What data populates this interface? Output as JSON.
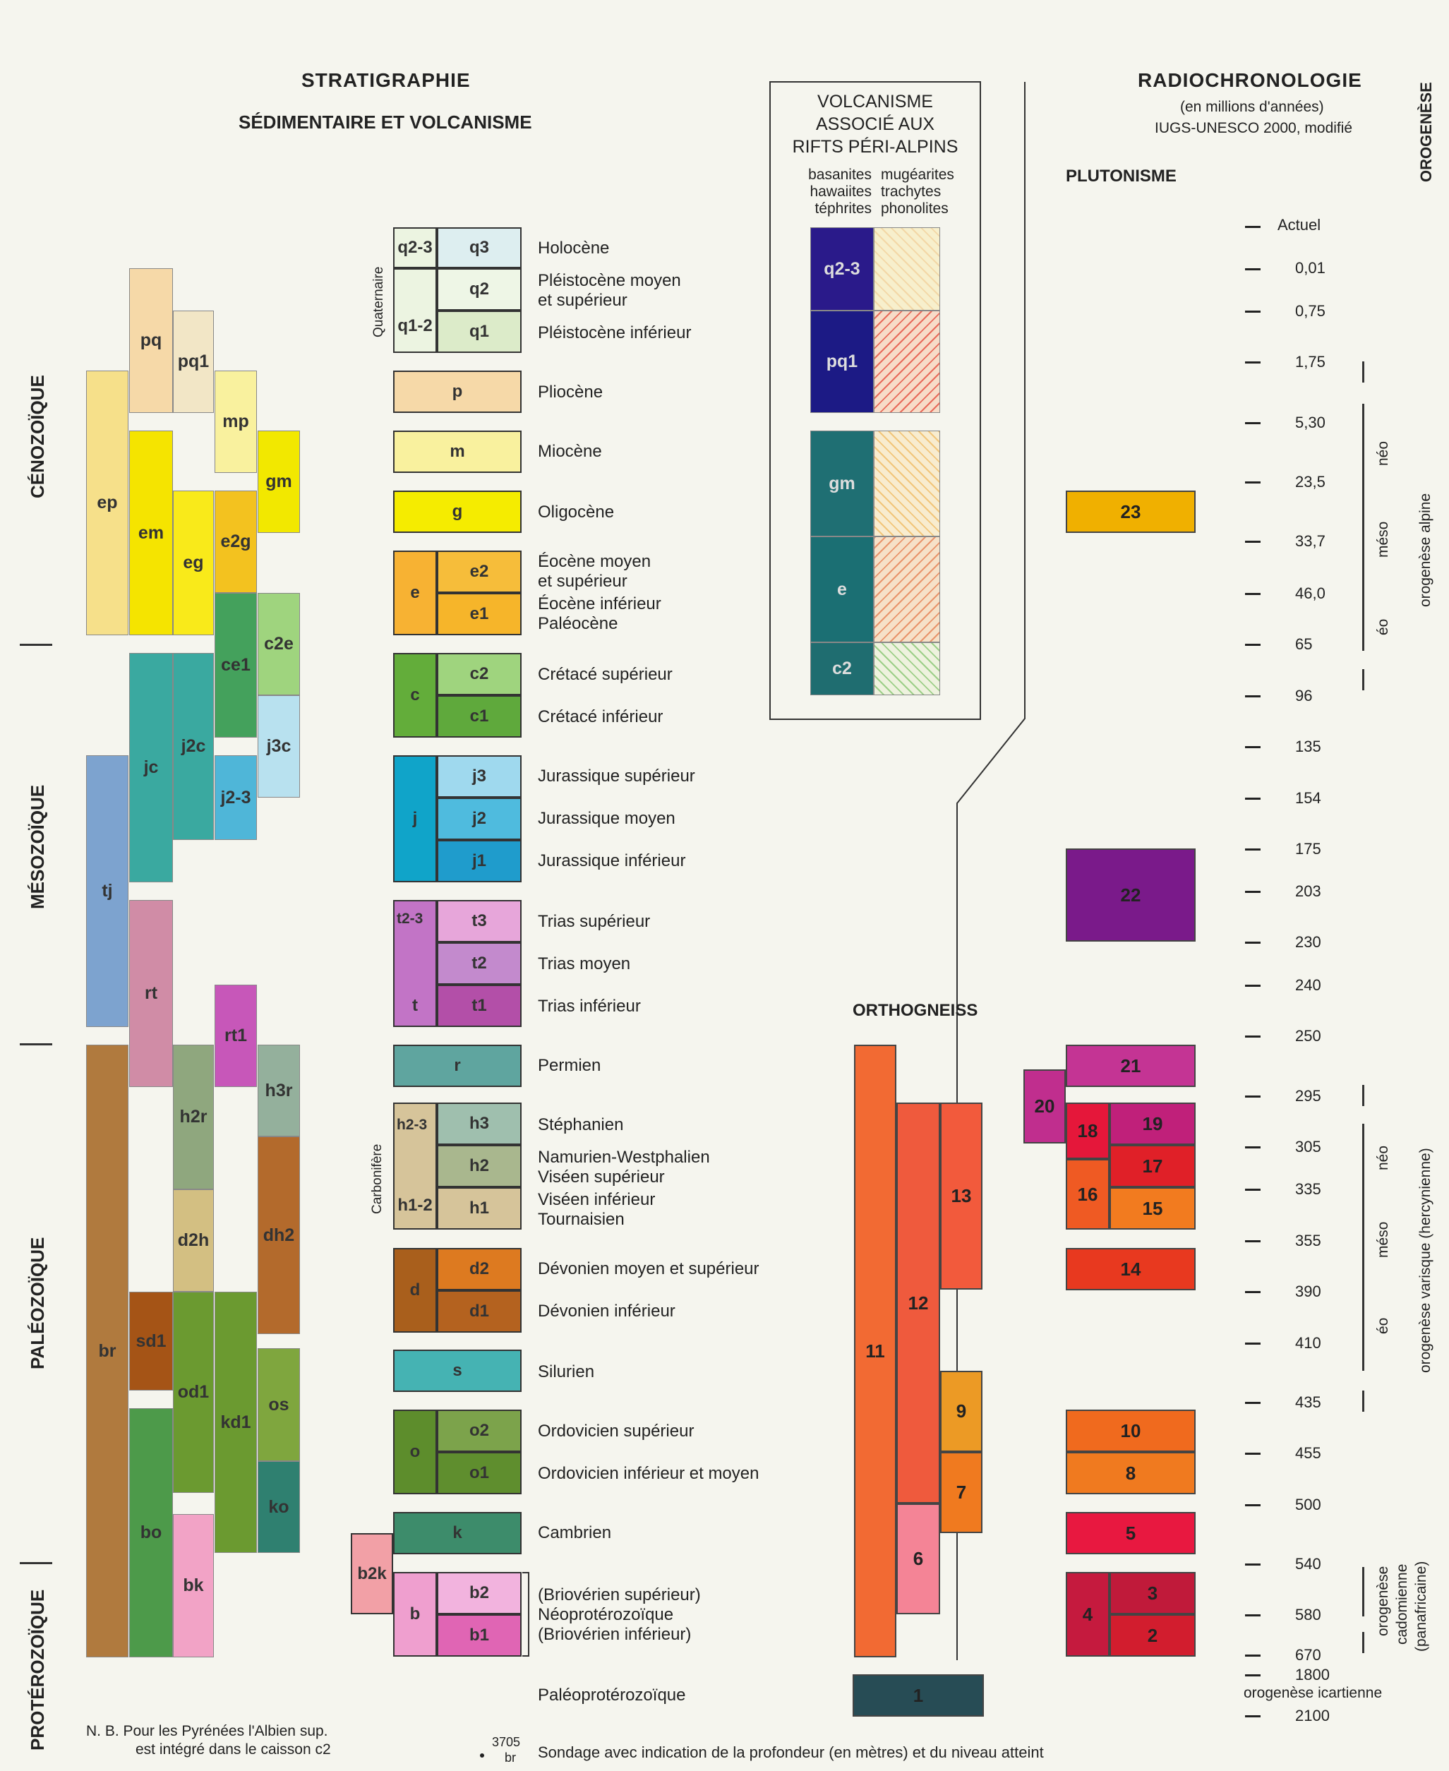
{
  "header": {
    "strat_title": "STRATIGRAPHIE",
    "strat_subtitle": "SÉDIMENTAIRE ET VOLCANISME",
    "volc_title_1": "VOLCANISME",
    "volc_title_2": "ASSOCIÉ AUX",
    "volc_title_3": "RIFTS PÉRI-ALPINS",
    "volc_left_1": "basanites",
    "volc_left_2": "hawaiites",
    "volc_left_3": "téphrites",
    "volc_right_1": "mugéarites",
    "volc_right_2": "trachytes",
    "volc_right_3": "phonolites",
    "radio_title": "RADIOCHRONOLOGIE",
    "radio_sub1": "(en millions d'années)",
    "radio_sub2": "IUGS-UNESCO 2000, modifié",
    "orogenese": "OROGENÈSE",
    "plutonisme": "PLUTONISME",
    "orthogneiss": "ORTHOGNEISS"
  },
  "eras": [
    "CÉNOZOÏQUE",
    "MÉSOZOÏQUE",
    "PALÉOZOÏQUE",
    "PROTÉROZOÏQUE"
  ],
  "groups": {
    "quaternaire": "Quaternaire",
    "carbonifere": "Carbonifère"
  },
  "legend_boxes": {
    "q23": "q2-3",
    "q3": "q3",
    "q2": "q2",
    "q12": "q1-2",
    "q1": "q1",
    "p": "p",
    "m": "m",
    "g": "g",
    "e": "e",
    "e2": "e2",
    "e1": "e1",
    "c": "c",
    "c2": "c2",
    "c1": "c1",
    "j": "j",
    "j3": "j3",
    "j2": "j2",
    "j1": "j1",
    "t23": "t2-3",
    "t": "t",
    "t3": "t3",
    "t2": "t2",
    "t1": "t1",
    "r": "r",
    "h23": "h2-3",
    "h12": "h1-2",
    "h3": "h3",
    "h2": "h2",
    "h1": "h1",
    "d": "d",
    "d2": "d2",
    "d1": "d1",
    "s": "s",
    "o": "o",
    "o2": "o2",
    "o1": "o1",
    "k": "k",
    "b2k": "b2k",
    "b": "b",
    "b2": "b2",
    "b1": "b1"
  },
  "legend_labels": {
    "holocene": "Holocène",
    "pleisto_moy_1": "Pléistocène moyen",
    "pleisto_moy_2": "et supérieur",
    "pleisto_inf": "Pléistocène inférieur",
    "pliocene": "Pliocène",
    "miocene": "Miocène",
    "oligocene": "Oligocène",
    "eoc_moy_1": "Éocène moyen",
    "eoc_moy_2": "et supérieur",
    "eoc_inf": "Éocène inférieur",
    "paleocene": "Paléocène",
    "cret_sup": "Crétacé supérieur",
    "cret_inf": "Crétacé inférieur",
    "jur_sup": "Jurassique supérieur",
    "jur_moy": "Jurassique moyen",
    "jur_inf": "Jurassique inférieur",
    "trias_sup": "Trias supérieur",
    "trias_moy": "Trias moyen",
    "trias_inf": "Trias inférieur",
    "permien": "Permien",
    "stephanien": "Stéphanien",
    "namurien": "Namurien-Westphalien",
    "visean_sup": "Viséen supérieur",
    "visean_inf": "Viséen inférieur",
    "tournaisien": "Tournaisien",
    "dev_moy": "Dévonien moyen et supérieur",
    "dev_inf": "Dévonien inférieur",
    "silurien": "Silurien",
    "ord_sup": "Ordovicien supérieur",
    "ord_inf": "Ordovicien inférieur et moyen",
    "cambrien": "Cambrien",
    "brio_sup": "(Briovérien supérieur)",
    "neoprot": "Néoprotérozoïque",
    "brio_inf": "(Briovérien inférieur)",
    "paleoprot": "Paléoprotérozoïque"
  },
  "left_cols": {
    "ep": "ep",
    "pq": "pq",
    "pq1": "pq1",
    "mp": "mp",
    "gm": "gm",
    "em": "em",
    "eg": "eg",
    "e2g": "e2g",
    "ce1": "ce1",
    "c2e": "c2e",
    "jc": "jc",
    "j2c": "j2c",
    "j3c": "j3c",
    "j23": "j2-3",
    "tj": "tj",
    "rt": "rt",
    "rt1": "rt1",
    "h2r": "h2r",
    "h3r": "h3r",
    "d2h": "d2h",
    "dh2": "dh2",
    "br": "br",
    "sd1": "sd1",
    "od1": "od1",
    "kd1": "kd1",
    "os": "os",
    "bo": "bo",
    "bk": "bk",
    "ko": "ko"
  },
  "volc_boxes": {
    "q23": "q2-3",
    "pq1": "pq1",
    "gm": "gm",
    "e": "e",
    "c2": "c2"
  },
  "ages": [
    "Actuel",
    "0,01",
    "0,75",
    "1,75",
    "5,30",
    "23,5",
    "33,7",
    "46,0",
    "65",
    "96",
    "135",
    "154",
    "175",
    "203",
    "230",
    "240",
    "250",
    "295",
    "305",
    "335",
    "355",
    "390",
    "410",
    "435",
    "455",
    "500",
    "540",
    "580",
    "670",
    "1800",
    "2100"
  ],
  "orogeny": {
    "neo": "néo",
    "meso": "méso",
    "eo": "éo",
    "alpine": "orogenèse alpine",
    "varisque": "orogenèse varisque (hercynienne)",
    "cadom_1": "orogenèse",
    "cadom_2": "cadomienne",
    "cadom_3": "(panafricaine)",
    "icartienne": "orogenèse icartienne"
  },
  "pluton": {
    "p23": "23",
    "p22": "22",
    "p21": "21",
    "p20": "20",
    "p19": "19",
    "p18": "18",
    "p17": "17",
    "p16": "16",
    "p15": "15",
    "p14": "14",
    "p10": "10",
    "p8": "8",
    "p5": "5",
    "p4": "4",
    "p3": "3",
    "p2": "2"
  },
  "ortho": {
    "o13": "13",
    "o12": "12",
    "o11": "11",
    "o9": "9",
    "o7": "7",
    "o6": "6",
    "o1": "1"
  },
  "footer": {
    "nb_1": "N. B.  Pour les Pyrénées l'Albien sup.",
    "nb_2": "est intégré dans le caisson c2",
    "sondage_num": "3705",
    "sondage_level": "br",
    "sondage_text": "Sondage avec indication de la profondeur (en mètres) et du niveau atteint"
  }
}
